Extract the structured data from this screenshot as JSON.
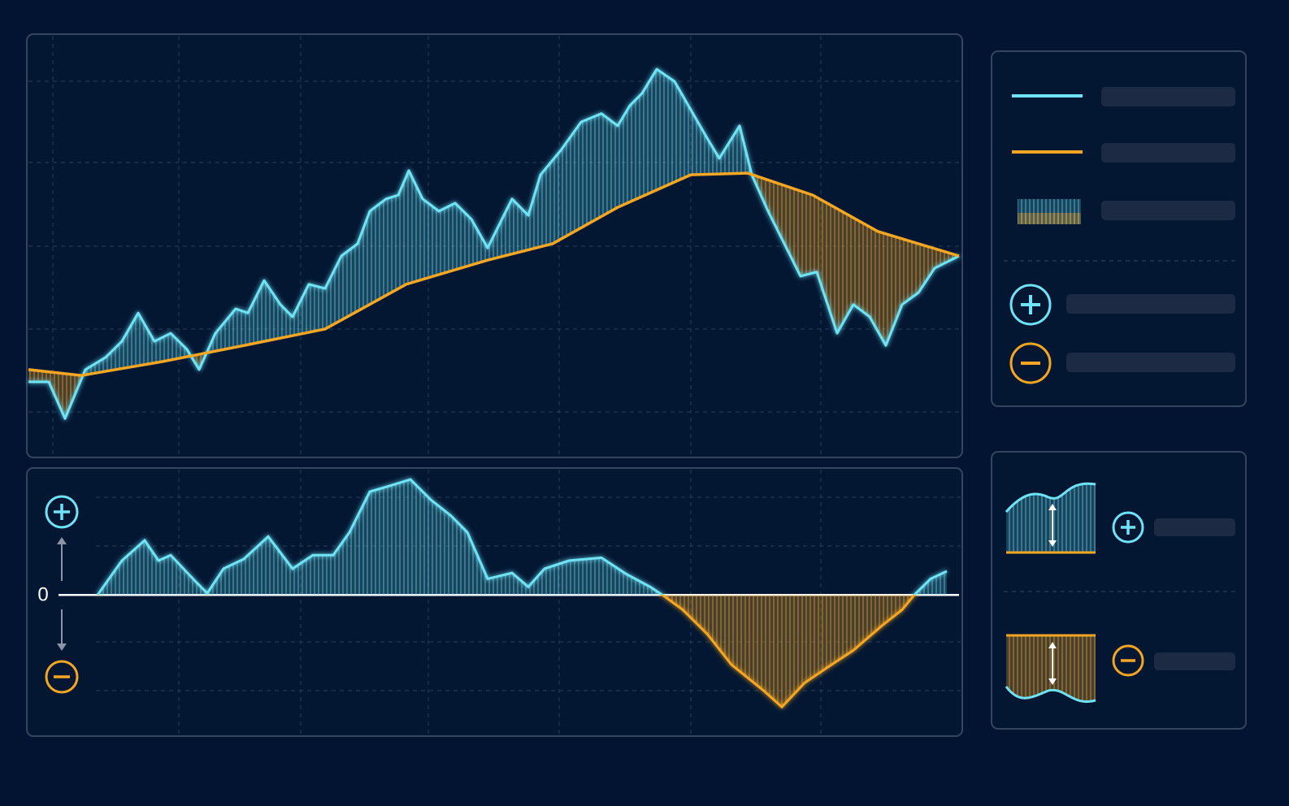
{
  "chart_data": [
    {
      "type": "line",
      "series": [
        {
          "color": "#6fe3f5",
          "x": [
            0,
            25,
            45,
            70,
            95,
            115,
            135,
            155,
            175,
            195,
            210,
            230,
            255,
            270,
            290,
            310,
            325,
            345,
            365,
            385,
            405,
            420,
            440,
            455,
            468,
            485,
            505,
            525,
            545,
            565,
            580,
            595,
            615,
            630,
            655,
            680,
            705,
            725,
            740,
            755,
            773,
            795,
            815,
            835,
            850,
            875,
            890,
            910,
            930,
            950,
            970,
            995,
            1015,
            1035,
            1055,
            1075,
            1095,
            1115,
            1145
          ],
          "values": [
            17.7,
            17.7,
            9.0,
            20.6,
            23.5,
            27.3,
            34.0,
            27.3,
            29.2,
            25.4,
            20.6,
            29.2,
            35.0,
            34.0,
            41.7,
            36.0,
            33.1,
            40.8,
            39.8,
            47.5,
            50.4,
            58.1,
            61.0,
            61.9,
            67.7,
            61.0,
            58.1,
            60.0,
            56.2,
            49.4,
            55.2,
            61.0,
            57.1,
            66.7,
            72.5,
            79.2,
            81.2,
            78.3,
            83.1,
            86.0,
            91.7,
            88.8,
            82.1,
            75.4,
            70.6,
            78.3,
            66.7,
            58.1,
            50.4,
            42.7,
            43.7,
            29.2,
            36.0,
            33.1,
            26.3,
            36.0,
            38.8,
            44.6,
            47.5
          ]
        },
        {
          "color": "#f5a623",
          "x": [
            0,
            65,
            165,
            265,
            365,
            465,
            565,
            645,
            725,
            815,
            885,
            965,
            1045,
            1145
          ],
          "values": [
            20.6,
            19.2,
            22.5,
            26.3,
            30.2,
            40.8,
            46.5,
            50.4,
            59.0,
            66.7,
            67.1,
            61.9,
            53.3,
            47.5
          ]
        }
      ],
      "xlim": [
        0,
        1145
      ],
      "ylim": [
        0,
        100
      ],
      "grid": true
    },
    {
      "type": "area",
      "series": [
        {
          "color": "#6fe3f5",
          "negative_color": "#f5a623",
          "x": [
            85,
            115,
            143,
            160,
            175,
            205,
            220,
            240,
            265,
            295,
            325,
            350,
            375,
            395,
            420,
            445,
            470,
            495,
            520,
            540,
            565,
            595,
            615,
            635,
            665,
            705,
            735,
            765,
            780,
            805,
            835,
            865,
            905,
            927,
            955,
            985,
            1015,
            1050,
            1075,
            1090,
            1110,
            1130
          ],
          "values": [
            0,
            8.1,
            12.9,
            8.1,
            9.4,
            3.3,
            0.4,
            6.2,
            8.5,
            13.8,
            6.2,
            9.4,
            9.4,
            14.8,
            24.4,
            25.8,
            27.3,
            22.5,
            18.7,
            14.8,
            3.8,
            5.2,
            1.9,
            6.2,
            8.1,
            8.8,
            5.0,
            1.9,
            0,
            -3.5,
            -9.2,
            -16.5,
            -22.7,
            -26.5,
            -20.8,
            -16.9,
            -13.1,
            -7.3,
            -3.5,
            0,
            3.8,
            5.6
          ]
        }
      ],
      "xlim": [
        0,
        1145
      ],
      "ylim": [
        -33,
        30
      ],
      "yticks": [
        0
      ]
    }
  ]
}
